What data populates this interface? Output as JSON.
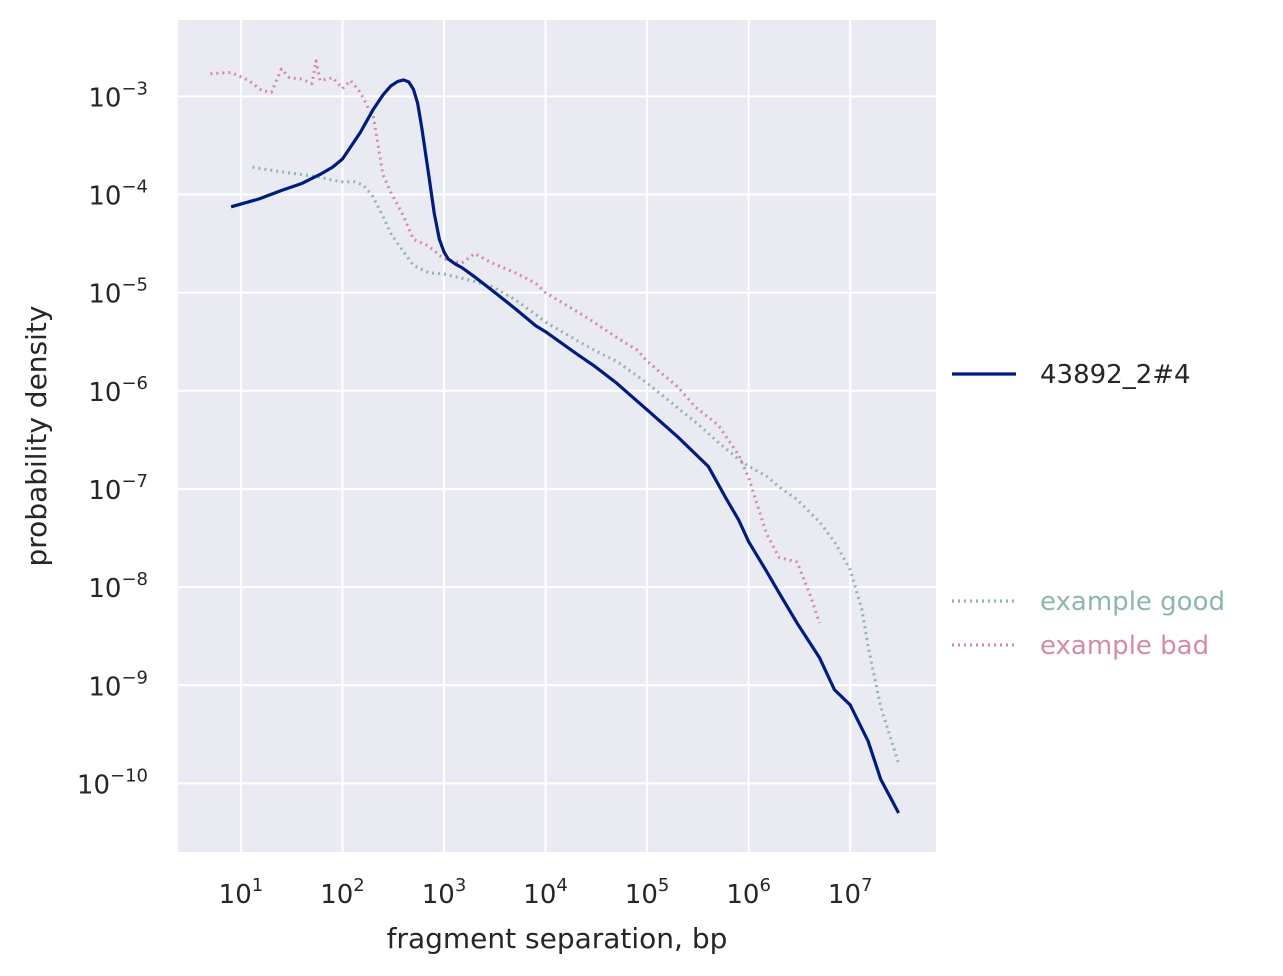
{
  "chart_data": {
    "type": "line",
    "title": "",
    "xlabel": "fragment separation, bp",
    "ylabel": "probability density",
    "xscale": "log",
    "yscale": "log",
    "xlim": [
      2.4,
      70000000
    ],
    "ylim": [
      2e-11,
      0.006
    ],
    "grid": true,
    "background": "#eaeaf2",
    "x_ticks": [
      {
        "base": "10",
        "exp": "1",
        "value": 10
      },
      {
        "base": "10",
        "exp": "2",
        "value": 100
      },
      {
        "base": "10",
        "exp": "3",
        "value": 1000
      },
      {
        "base": "10",
        "exp": "4",
        "value": 10000
      },
      {
        "base": "10",
        "exp": "5",
        "value": 100000
      },
      {
        "base": "10",
        "exp": "6",
        "value": 1000000
      },
      {
        "base": "10",
        "exp": "7",
        "value": 10000000
      }
    ],
    "y_ticks": [
      {
        "base": "10",
        "exp": "−3",
        "value": 0.001
      },
      {
        "base": "10",
        "exp": "−4",
        "value": 0.0001
      },
      {
        "base": "10",
        "exp": "−5",
        "value": 1e-05
      },
      {
        "base": "10",
        "exp": "−6",
        "value": 1e-06
      },
      {
        "base": "10",
        "exp": "−7",
        "value": 1e-07
      },
      {
        "base": "10",
        "exp": "−8",
        "value": 1e-08
      },
      {
        "base": "10",
        "exp": "−9",
        "value": 1e-09
      },
      {
        "base": "10",
        "exp": "−10",
        "value": 1e-10
      }
    ],
    "legend_placement": "right",
    "series": [
      {
        "name": "43892_2#4",
        "color": "#001c7f",
        "style": "solid",
        "x": [
          8,
          15,
          25,
          40,
          60,
          80,
          100,
          150,
          200,
          250,
          300,
          350,
          400,
          450,
          500,
          550,
          600,
          700,
          800,
          900,
          1000,
          1100,
          1300,
          1500,
          2000,
          3000,
          5000,
          8000,
          10000,
          20000,
          30000,
          50000,
          100000,
          200000,
          400000,
          600000,
          800000,
          1000000,
          1500000,
          2000000,
          3000000,
          5000000,
          7000000,
          10000000,
          15000000,
          20000000,
          30000000
        ],
        "y": [
          7.5e-05,
          9e-05,
          0.00011,
          0.00013,
          0.00016,
          0.00019,
          0.00023,
          0.00043,
          0.00073,
          0.00103,
          0.00128,
          0.00142,
          0.00147,
          0.0014,
          0.00118,
          0.00085,
          0.0005,
          0.00017,
          6.5e-05,
          3.5e-05,
          2.6e-05,
          2.2e-05,
          1.95e-05,
          1.8e-05,
          1.45e-05,
          1.05e-05,
          6.9e-06,
          4.6e-06,
          4e-06,
          2.4e-06,
          1.8e-06,
          1.2e-06,
          6.4e-07,
          3.4e-07,
          1.7e-07,
          8e-08,
          4.8e-08,
          2.9e-08,
          1.45e-08,
          8.7e-09,
          4.3e-09,
          1.9e-09,
          9e-10,
          6.3e-10,
          2.7e-10,
          1.1e-10,
          5e-11
        ]
      },
      {
        "name": "example good",
        "color": "#8fb5ae",
        "style": "dotted",
        "x": [
          13,
          25,
          40,
          60,
          80,
          100,
          130,
          160,
          200,
          250,
          300,
          400,
          500,
          700,
          1000,
          1500,
          2000,
          3000,
          5000,
          8000,
          10000,
          20000,
          30000,
          50000,
          100000,
          200000,
          300000,
          500000,
          800000,
          1000000,
          1500000,
          2000000,
          3000000,
          5000000,
          7000000,
          10000000,
          13000000,
          15000000,
          20000000,
          30000000
        ],
        "y": [
          0.00019,
          0.00017,
          0.00016,
          0.00015,
          0.00014,
          0.000135,
          0.000135,
          0.000125,
          9.5e-05,
          6e-05,
          4e-05,
          2.6e-05,
          1.9e-05,
          1.6e-05,
          1.55e-05,
          1.4e-05,
          1.3e-05,
          1.15e-05,
          8.5e-06,
          6e-06,
          5e-06,
          3.3e-06,
          2.6e-06,
          2e-06,
          1.2e-06,
          6.7e-07,
          4.8e-07,
          3e-07,
          2e-07,
          1.7e-07,
          1.35e-07,
          1.05e-07,
          7.8e-08,
          4.6e-08,
          2.9e-08,
          1.5e-08,
          6e-09,
          2.5e-09,
          6e-10,
          1.6e-10
        ]
      },
      {
        "name": "example bad",
        "color": "#d48ba8",
        "style": "dotted",
        "x": [
          5,
          8,
          12,
          16,
          20,
          25,
          30,
          40,
          50,
          55,
          60,
          70,
          80,
          100,
          120,
          150,
          180,
          200,
          250,
          300,
          400,
          500,
          700,
          1000,
          1500,
          2000,
          3000,
          5000,
          8000,
          10000,
          20000,
          30000,
          50000,
          80000,
          100000,
          200000,
          300000,
          500000,
          800000,
          1000000,
          1500000,
          2000000,
          3000000,
          4000000,
          5000000
        ],
        "y": [
          0.0017,
          0.00175,
          0.00145,
          0.00115,
          0.0011,
          0.0019,
          0.00155,
          0.0015,
          0.00135,
          0.0023,
          0.00145,
          0.0015,
          0.00155,
          0.0012,
          0.00145,
          0.0011,
          0.00075,
          0.00065,
          0.00016,
          0.000105,
          6e-05,
          3.5e-05,
          3e-05,
          2.2e-05,
          2e-05,
          2.5e-05,
          2e-05,
          1.6e-05,
          1.25e-05,
          1e-05,
          6.5e-06,
          5e-06,
          3.5e-06,
          2.6e-06,
          2e-06,
          1.1e-06,
          6.8e-07,
          4.5e-07,
          2.2e-07,
          1.3e-07,
          3.5e-08,
          2e-08,
          1.8e-08,
          8.5e-09,
          4.3e-09
        ]
      }
    ]
  }
}
